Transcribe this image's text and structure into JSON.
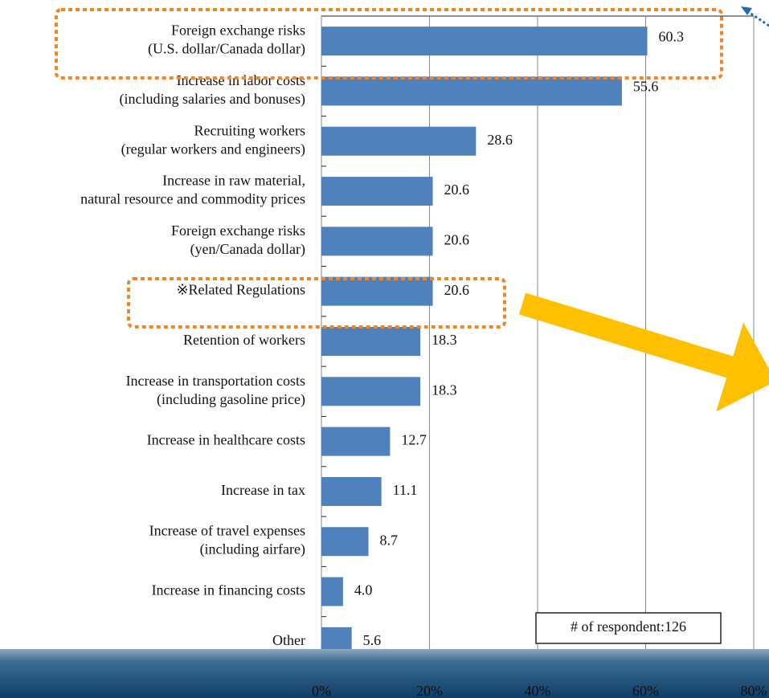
{
  "chart_data": {
    "type": "bar",
    "orientation": "horizontal",
    "categories": [
      "Foreign exchange risks\n(U.S. dollar/Canada dollar)",
      "Increase in labor costs\n(including salaries and bonuses)",
      "Recruiting workers\n(regular workers and engineers)",
      "Increase in raw material,\nnatural resource and commodity prices",
      "Foreign exchange risks\n(yen/Canada dollar)",
      "※Related Regulations",
      "Retention of workers",
      "Increase in transportation costs\n(including gasoline price)",
      "Increase in healthcare costs",
      "Increase in tax",
      "Increase of travel expenses\n(including airfare)",
      "Increase in financing costs",
      "Other"
    ],
    "values": [
      60.3,
      55.6,
      28.6,
      20.6,
      20.6,
      20.6,
      18.3,
      18.3,
      12.7,
      11.1,
      8.7,
      4.0,
      5.6
    ],
    "value_labels": [
      "60.3",
      "55.6",
      "28.6",
      "20.6",
      "20.6",
      "20.6",
      "18.3",
      "18.3",
      "12.7",
      "11.1",
      "8.7",
      "4.0",
      "5.6"
    ],
    "color": "#4f81bd",
    "xlim": [
      0,
      80
    ],
    "xticks": [
      {
        "value": 0,
        "label": "0%"
      },
      {
        "value": 20,
        "label": "20%"
      },
      {
        "value": 40,
        "label": "40%"
      },
      {
        "value": 60,
        "label": "60%"
      },
      {
        "value": 80,
        "label": "80%"
      }
    ],
    "grid": true,
    "annotation": "# of respondent:126"
  }
}
